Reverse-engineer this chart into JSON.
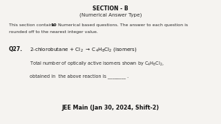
{
  "bg_color": "#f5f3f0",
  "section_title": "SECTION - B",
  "section_subtitle": "(Numerical Answer Type)",
  "intro_text": "This section contains ",
  "intro_bold": "10",
  "intro_text2": " Numerical based questions. The answer to each question is\nrounded off to the nearest integer value.",
  "q_number": "Q27.",
  "footer": "JEE Main (Jan 30, 2024, Shift-2)",
  "text_color": "#2a2a2a",
  "bold_color": "#111111",
  "fontsize_section": 5.5,
  "fontsize_body": 4.5,
  "fontsize_q": 5.5,
  "fontsize_footer": 5.8
}
